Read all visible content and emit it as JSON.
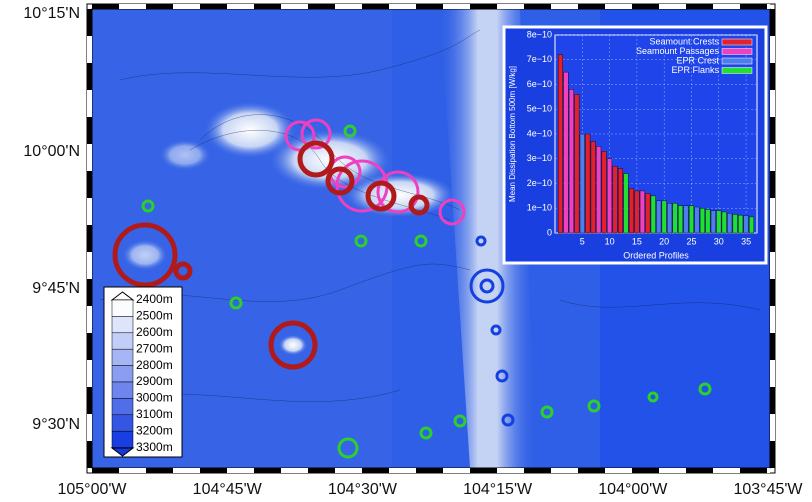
{
  "map": {
    "lat_labels": [
      "10°15'N",
      "10°00'N",
      "9°45'N",
      "9°30'N"
    ],
    "lon_labels": [
      "105°00'W",
      "104°45'W",
      "104°30'W",
      "104°15'W",
      "104°00'W",
      "103°45'W"
    ],
    "colorbar_labels": [
      "2400m",
      "2500m",
      "2600m",
      "2700m",
      "2800m",
      "2900m",
      "3000m",
      "3100m",
      "3200m",
      "3300m"
    ]
  },
  "chart_data": {
    "type": "bar",
    "ylabel": "Mean Dissipation Bottom 500m [W/kg]",
    "xlabel": "Ordered Profiles",
    "xlim": [
      0,
      37
    ],
    "xticks": [
      5,
      10,
      15,
      20,
      25,
      30,
      35
    ],
    "ylim": [
      0,
      8e-10
    ],
    "yticks": [
      0,
      {
        "value": 1e-10,
        "label": "1e−10"
      },
      {
        "value": 2e-10,
        "label": "2e−10"
      },
      {
        "value": 3e-10,
        "label": "3e−10"
      },
      {
        "value": 4e-10,
        "label": "4e−10"
      },
      {
        "value": 5e-10,
        "label": "5e−10"
      },
      {
        "value": 6e-10,
        "label": "6e−10"
      },
      {
        "value": 7e-10,
        "label": "7e−10"
      },
      {
        "value": 8e-10,
        "label": "8e−10"
      }
    ],
    "grid": true,
    "legend": "top-right",
    "series": [
      {
        "name": "Seamount Crests",
        "color": "#e3202b",
        "x": [
          1,
          4,
          6,
          7,
          9,
          11,
          12,
          14,
          15,
          17
        ],
        "values": [
          7.2e-10,
          5.6e-10,
          4e-10,
          3.7e-10,
          3.3e-10,
          2.7e-10,
          2.6e-10,
          1.8e-10,
          1.7e-10,
          1.6e-10
        ]
      },
      {
        "name": "Seamount Passages",
        "color": "#ee40c0",
        "x": [
          2,
          3,
          8,
          10,
          16
        ],
        "values": [
          6.5e-10,
          5.8e-10,
          3.5e-10,
          3e-10,
          1.7e-10
        ]
      },
      {
        "name": "EPR Crest",
        "color": "#4f7df0",
        "x": [
          5,
          19,
          21,
          24,
          26,
          29,
          32,
          35
        ],
        "values": [
          4e-10,
          1.3e-10,
          1.2e-10,
          1.1e-10,
          1.05e-10,
          9e-11,
          8e-11,
          7e-11
        ]
      },
      {
        "name": "EPR Flanks",
        "color": "#22dd33",
        "x": [
          13,
          18,
          20,
          22,
          23,
          25,
          27,
          28,
          30,
          31,
          33,
          34,
          36
        ],
        "values": [
          2.4e-10,
          1.5e-10,
          1.3e-10,
          1.2e-10,
          1.1e-10,
          1.1e-10,
          1e-10,
          9.5e-11,
          9e-11,
          8.5e-11,
          7.5e-11,
          7.2e-11,
          6.5e-11
        ]
      }
    ]
  }
}
